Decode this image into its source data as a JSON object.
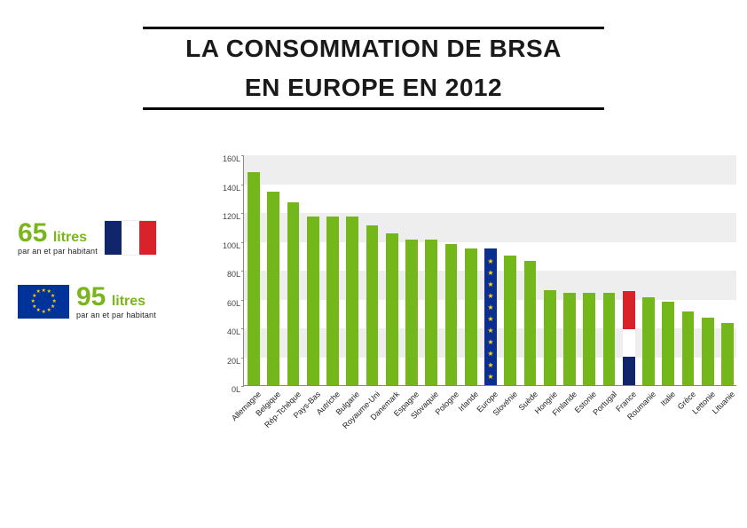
{
  "title": {
    "line1": "LA CONSOMMATION DE BRSA",
    "line2": "EN EUROPE EN 2012",
    "fontsize": 28,
    "color": "#1a1a1a",
    "rule_color": "#000000",
    "rule_width": 520
  },
  "stats": {
    "france": {
      "value": "65",
      "unit": "litres",
      "sub": "par an et par habitant",
      "color": "#7ab51d",
      "flag": {
        "blue": "#11256b",
        "white": "#ffffff",
        "red": "#d8232a"
      }
    },
    "europe": {
      "value": "95",
      "unit": "litres",
      "sub": "par an et par habitant",
      "color": "#7ab51d",
      "flag": {
        "bg": "#003399",
        "star": "#ffcc00"
      }
    }
  },
  "chart": {
    "type": "bar",
    "ymin": 0,
    "ymax": 160,
    "ytick_step": 20,
    "ytick_suffix": "L",
    "band_color": "#eeeeee",
    "background_color": "#ffffff",
    "axis_color": "#888888",
    "label_fontsize": 9,
    "bar_width_ratio": 0.62,
    "default_bar_color": "#74b71b",
    "countries": [
      {
        "name": "Allemagne",
        "value": 148
      },
      {
        "name": "Belgique",
        "value": 134
      },
      {
        "name": "Rép-Tchèque",
        "value": 127
      },
      {
        "name": "Pays-Bas",
        "value": 117
      },
      {
        "name": "Autriche",
        "value": 117
      },
      {
        "name": "Bulgarie",
        "value": 117
      },
      {
        "name": "Royaume-Uni",
        "value": 111
      },
      {
        "name": "Danemark",
        "value": 105
      },
      {
        "name": "Espagne",
        "value": 101
      },
      {
        "name": "Slovaquie",
        "value": 101
      },
      {
        "name": "Pologne",
        "value": 98
      },
      {
        "name": "Irlande",
        "value": 95
      },
      {
        "name": "Europe",
        "value": 95,
        "style": "eu",
        "eu_bg": "#0a2f8f",
        "eu_star": "#f9d616"
      },
      {
        "name": "Slovénie",
        "value": 90
      },
      {
        "name": "Suède",
        "value": 86
      },
      {
        "name": "Hongrie",
        "value": 66
      },
      {
        "name": "Finlande",
        "value": 64
      },
      {
        "name": "Estonie",
        "value": 64
      },
      {
        "name": "Portugal",
        "value": 64
      },
      {
        "name": "France",
        "value": 65,
        "style": "france",
        "france_segments": [
          {
            "color": "#11256b",
            "from": 0,
            "to": 20
          },
          {
            "color": "#ffffff",
            "from": 20,
            "to": 39
          },
          {
            "color": "#d8232a",
            "from": 39,
            "to": 65
          }
        ]
      },
      {
        "name": "Roumanie",
        "value": 61
      },
      {
        "name": "Italie",
        "value": 58
      },
      {
        "name": "Grèce",
        "value": 51
      },
      {
        "name": "Lettonie",
        "value": 47
      },
      {
        "name": "Lituanie",
        "value": 43
      }
    ]
  }
}
